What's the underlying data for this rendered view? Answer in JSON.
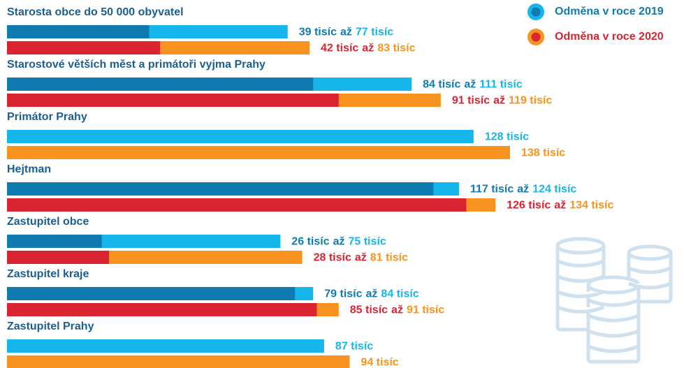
{
  "chart_data": {
    "type": "range_bar",
    "categories": [
      "Starosta obce do 50 000 obyvatel",
      "Starostové větších měst a primátoři vyjma Prahy",
      "Primátor Prahy",
      "Hejtman",
      "Zastupitel obce",
      "Zastupitel kraje",
      "Zastupitel Prahy"
    ],
    "joiner": "až",
    "category_color": "#1b5f92",
    "legend": "top-right",
    "series": [
      {
        "name": "Odměna v roce 2019",
        "color": "#0f7bb0",
        "range_color": "#16b5ec",
        "low": [
          39,
          84,
          null,
          117,
          26,
          79,
          null
        ],
        "high": [
          77,
          111,
          128,
          124,
          75,
          84,
          87
        ],
        "low_labels": [
          "39 tisíc",
          "84 tisíc",
          null,
          "117 tisíc",
          "26 tisíc",
          "79 tisíc",
          null
        ],
        "high_labels": [
          "77 tisíc",
          "111 tisíc",
          "128 tisíc",
          "124 tisíc",
          "75 tisíc",
          "84 tisíc",
          "87 tisíc"
        ]
      },
      {
        "name": "Odměna v roce 2020",
        "color": "#db2431",
        "range_color": "#f7931e",
        "low": [
          42,
          91,
          null,
          126,
          28,
          85,
          null
        ],
        "high": [
          83,
          119,
          138,
          134,
          81,
          91,
          94
        ],
        "low_labels": [
          "42 tisíc",
          "91 tisíc",
          null,
          "126 tisíc",
          "28 tisíc",
          "85 tisíc",
          null
        ],
        "high_labels": [
          "83 tisíc",
          "119 tisíc",
          "138 tisíc",
          "134 tisíc",
          "81 tisíc",
          "91 tisíc",
          "94 tisíc"
        ]
      }
    ]
  }
}
